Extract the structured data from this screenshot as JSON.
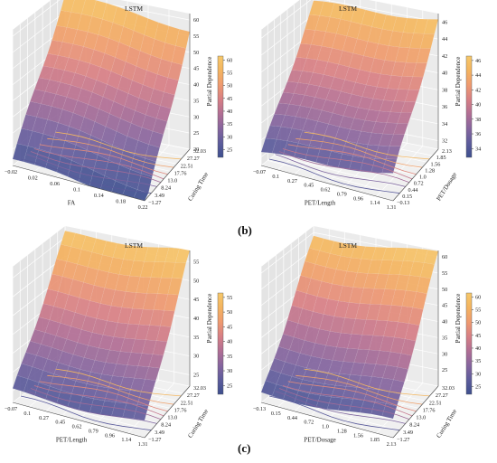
{
  "panel_labels": [
    "(b)",
    "(c)"
  ],
  "colors": {
    "colormap": [
      "#3d4f8e",
      "#5d5c9c",
      "#86659e",
      "#b16e94",
      "#d77f85",
      "#ef9a6f",
      "#f4b45f",
      "#f6c86a"
    ],
    "pane": "#ebebeb",
    "grid": "#ffffff",
    "axis_line": "#444444"
  },
  "chart_data": [
    {
      "type": "surface3d",
      "title": "LSTM",
      "xlabel": "FA",
      "ylabel": "Curing Time",
      "zlabel": "Partial Dependence",
      "x_ticks": [
        "−0.02",
        "0.02",
        "0.06",
        "0.1",
        "0.14",
        "0.18",
        "0.22"
      ],
      "y_ticks": [
        "−1.27",
        "3.49",
        "8.24",
        "13.0",
        "17.76",
        "22.51",
        "27.27",
        "32.03"
      ],
      "z_ticks": [
        "20",
        "25",
        "30",
        "35",
        "40",
        "45",
        "50",
        "55",
        "60"
      ],
      "colorbar_ticks": [
        "25",
        "30",
        "35",
        "40",
        "45",
        "50",
        "55",
        "60"
      ],
      "zlim": [
        20,
        62
      ],
      "surface_corners": {
        "x0y0": 22,
        "x1y0": 18,
        "x0y1": 60,
        "x1y1": 57
      }
    },
    {
      "type": "surface3d",
      "title": "LSTM",
      "xlabel": "PET/Length",
      "ylabel": "PET/Dosage",
      "zlabel": "Partial Dependence",
      "x_ticks": [
        "−0.07",
        "0.1",
        "0.27",
        "0.45",
        "0.62",
        "0.79",
        "0.96",
        "1.14",
        "1.31"
      ],
      "y_ticks": [
        "−0.13",
        "0.15",
        "0.44",
        "0.72",
        "1.0",
        "1.28",
        "1.56",
        "1.85",
        "2.13"
      ],
      "z_ticks": [
        "32",
        "34",
        "36",
        "38",
        "40",
        "42",
        "44",
        "46"
      ],
      "colorbar_ticks": [
        "34",
        "36",
        "38",
        "40",
        "42",
        "44",
        "46"
      ],
      "zlim": [
        31,
        47
      ],
      "surface_corners": {
        "x0y0": 32,
        "x1y0": 34,
        "x0y1": 45,
        "x1y1": 46
      }
    },
    {
      "type": "surface3d",
      "title": "LSTM",
      "xlabel": "PET/Length",
      "ylabel": "Curing Time",
      "zlabel": "Partial Dependence",
      "x_ticks": [
        "−0.07",
        "0.1",
        "0.27",
        "0.45",
        "0.62",
        "0.79",
        "0.96",
        "1.14",
        "1.31"
      ],
      "y_ticks": [
        "−1.27",
        "3.49",
        "8.24",
        "13.0",
        "17.76",
        "22.51",
        "27.27",
        "32.03"
      ],
      "z_ticks": [
        "25",
        "30",
        "35",
        "40",
        "45",
        "50",
        "55"
      ],
      "colorbar_ticks": [
        "25",
        "30",
        "35",
        "40",
        "45",
        "50",
        "55"
      ],
      "zlim": [
        22,
        58
      ],
      "surface_corners": {
        "x0y0": 24,
        "x1y0": 25,
        "x0y1": 55,
        "x1y1": 57
      }
    },
    {
      "type": "surface3d",
      "title": "LSTM",
      "xlabel": "PET/Dosage",
      "ylabel": "Curing Time",
      "zlabel": "Partial Dependence",
      "x_ticks": [
        "−0.13",
        "0.15",
        "0.44",
        "0.72",
        "1.0",
        "1.28",
        "1.56",
        "1.85",
        "2.13"
      ],
      "y_ticks": [
        "−1.27",
        "3.49",
        "8.24",
        "13.0",
        "17.76",
        "22.51",
        "27.27",
        "32.03"
      ],
      "z_ticks": [
        "25",
        "30",
        "35",
        "40",
        "45",
        "50",
        "55",
        "60"
      ],
      "colorbar_ticks": [
        "25",
        "30",
        "35",
        "40",
        "45",
        "50",
        "55",
        "60"
      ],
      "zlim": [
        20,
        62
      ],
      "surface_corners": {
        "x0y0": 22,
        "x1y0": 24,
        "x0y1": 58,
        "x1y1": 60
      }
    }
  ]
}
